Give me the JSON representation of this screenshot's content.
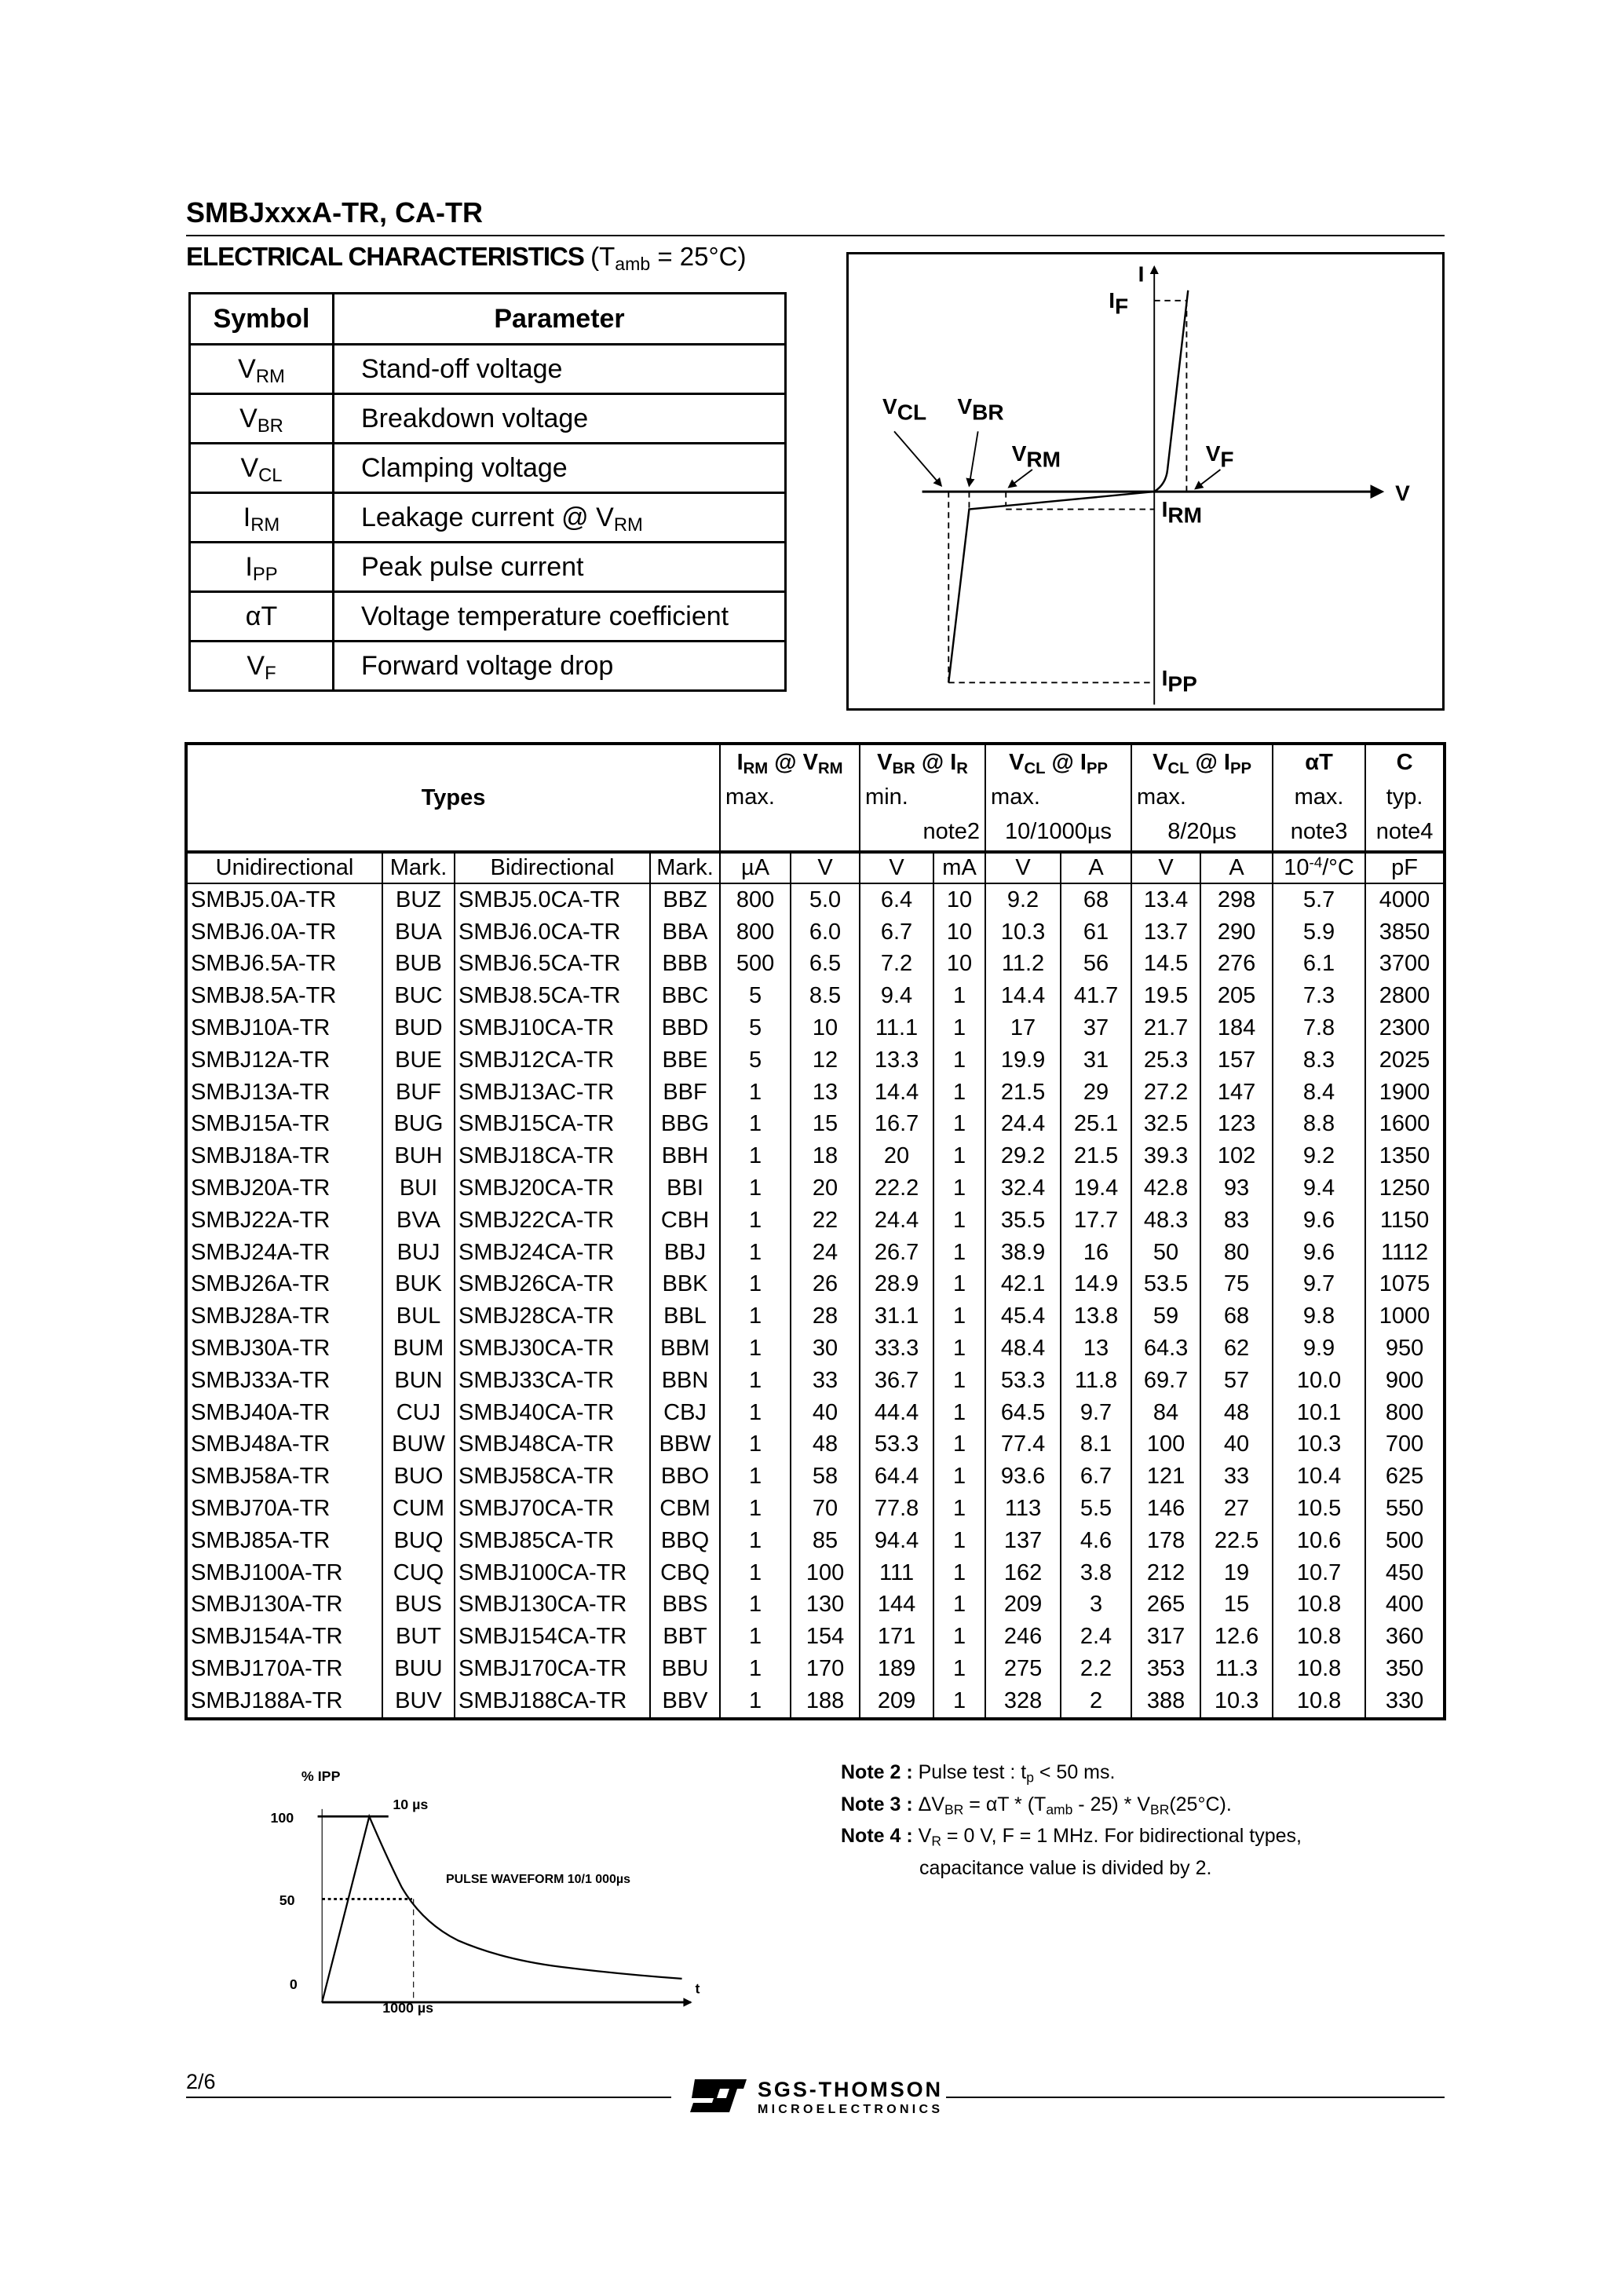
{
  "header": {
    "title": "SMBJxxxA-TR, CA-TR"
  },
  "section": {
    "title": "ELECTRICAL CHARACTERISTICS",
    "condition": [
      {
        "t": "(T"
      },
      {
        "s": "amb"
      },
      {
        "t": " = 25°C)"
      }
    ]
  },
  "symbol_table": {
    "headers": [
      "Symbol",
      "Parameter"
    ],
    "rows": [
      {
        "symbol": [
          {
            "t": "V"
          },
          {
            "s": "RM"
          }
        ],
        "parameter": [
          {
            "t": "Stand-off voltage"
          }
        ]
      },
      {
        "symbol": [
          {
            "t": "V"
          },
          {
            "s": "BR"
          }
        ],
        "parameter": [
          {
            "t": "Breakdown voltage"
          }
        ]
      },
      {
        "symbol": [
          {
            "t": "V"
          },
          {
            "s": "CL"
          }
        ],
        "parameter": [
          {
            "t": "Clamping voltage"
          }
        ]
      },
      {
        "symbol": [
          {
            "t": "I"
          },
          {
            "s": "RM"
          }
        ],
        "parameter": [
          {
            "t": "Leakage current @ V"
          },
          {
            "s": "RM"
          }
        ]
      },
      {
        "symbol": [
          {
            "t": "I"
          },
          {
            "s": "PP"
          }
        ],
        "parameter": [
          {
            "t": "Peak pulse current"
          }
        ]
      },
      {
        "symbol": [
          {
            "t": "αT"
          }
        ],
        "parameter": [
          {
            "t": "Voltage temperature coefficient"
          }
        ]
      },
      {
        "symbol": [
          {
            "t": "V"
          },
          {
            "s": "F"
          }
        ],
        "parameter": [
          {
            "t": "Forward voltage drop"
          }
        ]
      }
    ]
  },
  "iv_diagram": {
    "axis_v": "V",
    "axis_i": "I",
    "labels": {
      "IF": [
        "I",
        "F"
      ],
      "VCL": [
        "V",
        "CL"
      ],
      "VBR": [
        "V",
        "BR"
      ],
      "VRM": [
        "V",
        "RM"
      ],
      "VF": [
        "V",
        "F"
      ],
      "IRM": [
        "I",
        "RM"
      ],
      "IPP": [
        "I",
        "PP"
      ]
    }
  },
  "main_table": {
    "types_header": "Types",
    "param_headers": [
      {
        "title": [
          {
            "t": "I"
          },
          {
            "s": "RM"
          },
          {
            "t": " @ V"
          },
          {
            "s": "RM"
          }
        ],
        "line2": "max.",
        "line3": ""
      },
      {
        "title": [
          {
            "t": "V"
          },
          {
            "s": "BR"
          },
          {
            "t": "  @  I"
          },
          {
            "s": "R"
          }
        ],
        "line2": "min.",
        "line3": "note2"
      },
      {
        "title": [
          {
            "t": "V"
          },
          {
            "s": "CL"
          },
          {
            "t": " @ I"
          },
          {
            "s": "PP"
          }
        ],
        "line2": "max.",
        "line3": "10/1000µs"
      },
      {
        "title": [
          {
            "t": "V"
          },
          {
            "s": "CL"
          },
          {
            "t": " @ I"
          },
          {
            "s": "PP"
          }
        ],
        "line2": "max.",
        "line3": "8/20µs"
      },
      {
        "title": [
          {
            "t": "αT"
          }
        ],
        "line2": "max.",
        "line3": "note3"
      },
      {
        "title": [
          {
            "t": "C"
          }
        ],
        "line2": "typ.",
        "line3": "note4"
      }
    ],
    "units": [
      "Unidirectional",
      "Mark.",
      "Bidirectional",
      "Mark.",
      "µA",
      "V",
      "V",
      "mA",
      "V",
      "A",
      "V",
      "A",
      "10-4/°C",
      "pF"
    ],
    "rows": [
      [
        "SMBJ5.0A-TR",
        "BUZ",
        "SMBJ5.0CA-TR",
        "BBZ",
        "800",
        "5.0",
        "6.4",
        "10",
        "9.2",
        "68",
        "13.4",
        "298",
        "5.7",
        "4000"
      ],
      [
        "SMBJ6.0A-TR",
        "BUA",
        "SMBJ6.0CA-TR",
        "BBA",
        "800",
        "6.0",
        "6.7",
        "10",
        "10.3",
        "61",
        "13.7",
        "290",
        "5.9",
        "3850"
      ],
      [
        "SMBJ6.5A-TR",
        "BUB",
        "SMBJ6.5CA-TR",
        "BBB",
        "500",
        "6.5",
        "7.2",
        "10",
        "11.2",
        "56",
        "14.5",
        "276",
        "6.1",
        "3700"
      ],
      [
        "SMBJ8.5A-TR",
        "BUC",
        "SMBJ8.5CA-TR",
        "BBC",
        "5",
        "8.5",
        "9.4",
        "1",
        "14.4",
        "41.7",
        "19.5",
        "205",
        "7.3",
        "2800"
      ],
      [
        "SMBJ10A-TR",
        "BUD",
        "SMBJ10CA-TR",
        "BBD",
        "5",
        "10",
        "11.1",
        "1",
        "17",
        "37",
        "21.7",
        "184",
        "7.8",
        "2300"
      ],
      [
        "SMBJ12A-TR",
        "BUE",
        "SMBJ12CA-TR",
        "BBE",
        "5",
        "12",
        "13.3",
        "1",
        "19.9",
        "31",
        "25.3",
        "157",
        "8.3",
        "2025"
      ],
      [
        "SMBJ13A-TR",
        "BUF",
        "SMBJ13AC-TR",
        "BBF",
        "1",
        "13",
        "14.4",
        "1",
        "21.5",
        "29",
        "27.2",
        "147",
        "8.4",
        "1900"
      ],
      [
        "SMBJ15A-TR",
        "BUG",
        "SMBJ15CA-TR",
        "BBG",
        "1",
        "15",
        "16.7",
        "1",
        "24.4",
        "25.1",
        "32.5",
        "123",
        "8.8",
        "1600"
      ],
      [
        "SMBJ18A-TR",
        "BUH",
        "SMBJ18CA-TR",
        "BBH",
        "1",
        "18",
        "20",
        "1",
        "29.2",
        "21.5",
        "39.3",
        "102",
        "9.2",
        "1350"
      ],
      [
        "SMBJ20A-TR",
        "BUI",
        "SMBJ20CA-TR",
        "BBI",
        "1",
        "20",
        "22.2",
        "1",
        "32.4",
        "19.4",
        "42.8",
        "93",
        "9.4",
        "1250"
      ],
      [
        "SMBJ22A-TR",
        "BVA",
        "SMBJ22CA-TR",
        "CBH",
        "1",
        "22",
        "24.4",
        "1",
        "35.5",
        "17.7",
        "48.3",
        "83",
        "9.6",
        "1150"
      ],
      [
        "SMBJ24A-TR",
        "BUJ",
        "SMBJ24CA-TR",
        "BBJ",
        "1",
        "24",
        "26.7",
        "1",
        "38.9",
        "16",
        "50",
        "80",
        "9.6",
        "1112"
      ],
      [
        "SMBJ26A-TR",
        "BUK",
        "SMBJ26CA-TR",
        "BBK",
        "1",
        "26",
        "28.9",
        "1",
        "42.1",
        "14.9",
        "53.5",
        "75",
        "9.7",
        "1075"
      ],
      [
        "SMBJ28A-TR",
        "BUL",
        "SMBJ28CA-TR",
        "BBL",
        "1",
        "28",
        "31.1",
        "1",
        "45.4",
        "13.8",
        "59",
        "68",
        "9.8",
        "1000"
      ],
      [
        "SMBJ30A-TR",
        "BUM",
        "SMBJ30CA-TR",
        "BBM",
        "1",
        "30",
        "33.3",
        "1",
        "48.4",
        "13",
        "64.3",
        "62",
        "9.9",
        "950"
      ],
      [
        "SMBJ33A-TR",
        "BUN",
        "SMBJ33CA-TR",
        "BBN",
        "1",
        "33",
        "36.7",
        "1",
        "53.3",
        "11.8",
        "69.7",
        "57",
        "10.0",
        "900"
      ],
      [
        "SMBJ40A-TR",
        "CUJ",
        "SMBJ40CA-TR",
        "CBJ",
        "1",
        "40",
        "44.4",
        "1",
        "64.5",
        "9.7",
        "84",
        "48",
        "10.1",
        "800"
      ],
      [
        "SMBJ48A-TR",
        "BUW",
        "SMBJ48CA-TR",
        "BBW",
        "1",
        "48",
        "53.3",
        "1",
        "77.4",
        "8.1",
        "100",
        "40",
        "10.3",
        "700"
      ],
      [
        "SMBJ58A-TR",
        "BUO",
        "SMBJ58CA-TR",
        "BBO",
        "1",
        "58",
        "64.4",
        "1",
        "93.6",
        "6.7",
        "121",
        "33",
        "10.4",
        "625"
      ],
      [
        "SMBJ70A-TR",
        "CUM",
        "SMBJ70CA-TR",
        "CBM",
        "1",
        "70",
        "77.8",
        "1",
        "113",
        "5.5",
        "146",
        "27",
        "10.5",
        "550"
      ],
      [
        "SMBJ85A-TR",
        "BUQ",
        "SMBJ85CA-TR",
        "BBQ",
        "1",
        "85",
        "94.4",
        "1",
        "137",
        "4.6",
        "178",
        "22.5",
        "10.6",
        "500"
      ],
      [
        "SMBJ100A-TR",
        "CUQ",
        "SMBJ100CA-TR",
        "CBQ",
        "1",
        "100",
        "111",
        "1",
        "162",
        "3.8",
        "212",
        "19",
        "10.7",
        "450"
      ],
      [
        "SMBJ130A-TR",
        "BUS",
        "SMBJ130CA-TR",
        "BBS",
        "1",
        "130",
        "144",
        "1",
        "209",
        "3",
        "265",
        "15",
        "10.8",
        "400"
      ],
      [
        "SMBJ154A-TR",
        "BUT",
        "SMBJ154CA-TR",
        "BBT",
        "1",
        "154",
        "171",
        "1",
        "246",
        "2.4",
        "317",
        "12.6",
        "10.8",
        "360"
      ],
      [
        "SMBJ170A-TR",
        "BUU",
        "SMBJ170CA-TR",
        "BBU",
        "1",
        "170",
        "189",
        "1",
        "275",
        "2.2",
        "353",
        "11.3",
        "10.8",
        "350"
      ],
      [
        "SMBJ188A-TR",
        "BUV",
        "SMBJ188CA-TR",
        "BBV",
        "1",
        "188",
        "209",
        "1",
        "328",
        "2",
        "388",
        "10.3",
        "10.8",
        "330"
      ]
    ]
  },
  "pulse_waveform": {
    "ylabel": "% IPP",
    "title": "PULSE  WAVEFORM 10/1 000µs",
    "y_ticks": [
      "100",
      "50",
      "0"
    ],
    "xlabel": "t",
    "rise_label": "10 µs",
    "decay_label": "1000 µs"
  },
  "notes": [
    {
      "label": "Note 2 :",
      "text": [
        {
          "t": " Pulse test : t"
        },
        {
          "s": "p"
        },
        {
          "t": " < 50 ms."
        }
      ]
    },
    {
      "label": "Note 3 :",
      "text": [
        {
          "t": " ΔV"
        },
        {
          "s": "BR"
        },
        {
          "t": " = αT * (T"
        },
        {
          "s": "amb"
        },
        {
          "t": " - 25) * V"
        },
        {
          "s": "BR"
        },
        {
          "t": "(25°C)."
        }
      ]
    },
    {
      "label": "Note 4 :",
      "text": [
        {
          "t": " V"
        },
        {
          "s": "R"
        },
        {
          "t": " = 0 V,  F = 1 MHz. For bidirectional types,"
        }
      ]
    },
    {
      "label": "",
      "text": [
        {
          "t": "capacitance value is divided by 2."
        }
      ]
    }
  ],
  "footer": {
    "page": "2/6",
    "logo_line1": "SGS-THOMSON",
    "logo_line2": "MICROELECTRONICS"
  }
}
